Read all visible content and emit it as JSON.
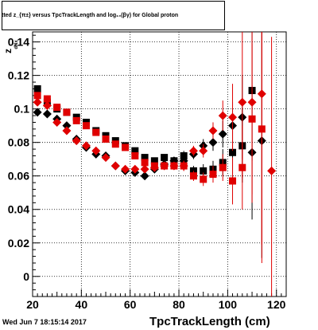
{
  "title": "tted  z_{π±} versus TpcTrackLength and log₁₀(βγ) for Global proton",
  "footer": {
    "date": "Wed Jun  7 18:15:14 2017"
  },
  "chart_data": {
    "type": "scatter",
    "xlabel": "TpcTrackLength (cm)",
    "ylabel": "z",
    "xlim": [
      20,
      124
    ],
    "ylim": [
      -0.012,
      0.146
    ],
    "x_ticks": [
      20,
      40,
      60,
      80,
      100,
      120
    ],
    "y_ticks": [
      0,
      0.02,
      0.04,
      0.06,
      0.08,
      0.1,
      0.12,
      0.14
    ],
    "y_tick_labels": [
      "0",
      "0.02",
      "0.04",
      "0.06",
      "0.08",
      "0.1",
      "0.12",
      "0.14"
    ],
    "grid": true,
    "series": [
      {
        "marker": "square",
        "color": "#000000",
        "points": [
          {
            "x": 22,
            "y": 0.112,
            "err": 0.002
          },
          {
            "x": 26,
            "y": 0.104,
            "err": 0.002
          },
          {
            "x": 30,
            "y": 0.1,
            "err": 0.002
          },
          {
            "x": 34,
            "y": 0.098,
            "err": 0.002
          },
          {
            "x": 38,
            "y": 0.095,
            "err": 0.002
          },
          {
            "x": 42,
            "y": 0.092,
            "err": 0.002
          },
          {
            "x": 46,
            "y": 0.087,
            "err": 0.002
          },
          {
            "x": 50,
            "y": 0.084,
            "err": 0.002
          },
          {
            "x": 54,
            "y": 0.081,
            "err": 0.002
          },
          {
            "x": 58,
            "y": 0.078,
            "err": 0.002
          },
          {
            "x": 62,
            "y": 0.075,
            "err": 0.002
          },
          {
            "x": 66,
            "y": 0.071,
            "err": 0.002
          },
          {
            "x": 70,
            "y": 0.069,
            "err": 0.002
          },
          {
            "x": 74,
            "y": 0.071,
            "err": 0.002
          },
          {
            "x": 78,
            "y": 0.069,
            "err": 0.002
          },
          {
            "x": 82,
            "y": 0.072,
            "err": 0.003
          },
          {
            "x": 86,
            "y": 0.063,
            "err": 0.003
          },
          {
            "x": 90,
            "y": 0.063,
            "err": 0.004
          },
          {
            "x": 94,
            "y": 0.064,
            "err": 0.005
          },
          {
            "x": 98,
            "y": 0.068,
            "err": 0.008
          },
          {
            "x": 102,
            "y": 0.074,
            "err": 0.013
          },
          {
            "x": 106,
            "y": 0.078,
            "err": 0.022
          },
          {
            "x": 110,
            "y": 0.111,
            "err": 0.042
          }
        ]
      },
      {
        "marker": "diamond",
        "color": "#000000",
        "points": [
          {
            "x": 22,
            "y": 0.098,
            "err": 0.002
          },
          {
            "x": 26,
            "y": 0.097,
            "err": 0.002
          },
          {
            "x": 30,
            "y": 0.094,
            "err": 0.002
          },
          {
            "x": 34,
            "y": 0.09,
            "err": 0.002
          },
          {
            "x": 38,
            "y": 0.082,
            "err": 0.002
          },
          {
            "x": 42,
            "y": 0.077,
            "err": 0.002
          },
          {
            "x": 46,
            "y": 0.073,
            "err": 0.002
          },
          {
            "x": 50,
            "y": 0.072,
            "err": 0.002
          },
          {
            "x": 54,
            "y": 0.066,
            "err": 0.002
          },
          {
            "x": 58,
            "y": 0.063,
            "err": 0.002
          },
          {
            "x": 62,
            "y": 0.062,
            "err": 0.002
          },
          {
            "x": 66,
            "y": 0.06,
            "err": 0.002
          },
          {
            "x": 70,
            "y": 0.064,
            "err": 0.002
          },
          {
            "x": 74,
            "y": 0.067,
            "err": 0.002
          },
          {
            "x": 78,
            "y": 0.069,
            "err": 0.002
          },
          {
            "x": 82,
            "y": 0.069,
            "err": 0.003
          },
          {
            "x": 86,
            "y": 0.073,
            "err": 0.003
          },
          {
            "x": 90,
            "y": 0.078,
            "err": 0.004
          },
          {
            "x": 94,
            "y": 0.08,
            "err": 0.005
          },
          {
            "x": 98,
            "y": 0.085,
            "err": 0.008
          },
          {
            "x": 102,
            "y": 0.09,
            "err": 0.014
          },
          {
            "x": 106,
            "y": 0.095,
            "err": 0.025
          },
          {
            "x": 110,
            "y": 0.074,
            "err": 0.04
          },
          {
            "x": 114,
            "y": 0.081,
            "err": 0.07
          }
        ]
      },
      {
        "marker": "square",
        "color": "#e00000",
        "points": [
          {
            "x": 22,
            "y": 0.108,
            "err": 0.002
          },
          {
            "x": 26,
            "y": 0.106,
            "err": 0.002
          },
          {
            "x": 30,
            "y": 0.101,
            "err": 0.002
          },
          {
            "x": 34,
            "y": 0.098,
            "err": 0.002
          },
          {
            "x": 38,
            "y": 0.093,
            "err": 0.002
          },
          {
            "x": 42,
            "y": 0.09,
            "err": 0.002
          },
          {
            "x": 46,
            "y": 0.086,
            "err": 0.002
          },
          {
            "x": 50,
            "y": 0.082,
            "err": 0.002
          },
          {
            "x": 54,
            "y": 0.079,
            "err": 0.002
          },
          {
            "x": 58,
            "y": 0.077,
            "err": 0.002
          },
          {
            "x": 62,
            "y": 0.072,
            "err": 0.002
          },
          {
            "x": 66,
            "y": 0.068,
            "err": 0.002
          },
          {
            "x": 70,
            "y": 0.066,
            "err": 0.002
          },
          {
            "x": 74,
            "y": 0.066,
            "err": 0.002
          },
          {
            "x": 78,
            "y": 0.066,
            "err": 0.002
          },
          {
            "x": 82,
            "y": 0.066,
            "err": 0.003
          },
          {
            "x": 86,
            "y": 0.06,
            "err": 0.003
          },
          {
            "x": 90,
            "y": 0.058,
            "err": 0.004
          },
          {
            "x": 94,
            "y": 0.061,
            "err": 0.005
          },
          {
            "x": 98,
            "y": 0.065,
            "err": 0.008
          },
          {
            "x": 102,
            "y": 0.057,
            "err": 0.014
          },
          {
            "x": 106,
            "y": 0.065,
            "err": 0.025
          },
          {
            "x": 110,
            "y": 0.094,
            "err": 0.045
          },
          {
            "x": 114,
            "y": 0.088,
            "err": 0.08
          }
        ]
      },
      {
        "marker": "diamond",
        "color": "#e00000",
        "points": [
          {
            "x": 22,
            "y": 0.104,
            "err": 0.002
          },
          {
            "x": 26,
            "y": 0.102,
            "err": 0.002
          },
          {
            "x": 30,
            "y": 0.092,
            "err": 0.002
          },
          {
            "x": 34,
            "y": 0.087,
            "err": 0.002
          },
          {
            "x": 38,
            "y": 0.081,
            "err": 0.002
          },
          {
            "x": 42,
            "y": 0.078,
            "err": 0.002
          },
          {
            "x": 46,
            "y": 0.075,
            "err": 0.002
          },
          {
            "x": 50,
            "y": 0.071,
            "err": 0.002
          },
          {
            "x": 54,
            "y": 0.066,
            "err": 0.002
          },
          {
            "x": 58,
            "y": 0.064,
            "err": 0.002
          },
          {
            "x": 62,
            "y": 0.064,
            "err": 0.002
          },
          {
            "x": 66,
            "y": 0.064,
            "err": 0.002
          },
          {
            "x": 70,
            "y": 0.065,
            "err": 0.002
          },
          {
            "x": 74,
            "y": 0.066,
            "err": 0.002
          },
          {
            "x": 78,
            "y": 0.066,
            "err": 0.002
          },
          {
            "x": 82,
            "y": 0.066,
            "err": 0.003
          },
          {
            "x": 86,
            "y": 0.075,
            "err": 0.003
          },
          {
            "x": 90,
            "y": 0.075,
            "err": 0.004
          },
          {
            "x": 94,
            "y": 0.087,
            "err": 0.005
          },
          {
            "x": 98,
            "y": 0.096,
            "err": 0.009
          },
          {
            "x": 102,
            "y": 0.095,
            "err": 0.02
          },
          {
            "x": 106,
            "y": 0.104,
            "err": 0.045
          },
          {
            "x": 110,
            "y": 0.104,
            "err": 0.06
          },
          {
            "x": 114,
            "y": 0.109,
            "err": 0.09
          },
          {
            "x": 118,
            "y": 0.063,
            "err": 0.08
          }
        ]
      }
    ]
  }
}
